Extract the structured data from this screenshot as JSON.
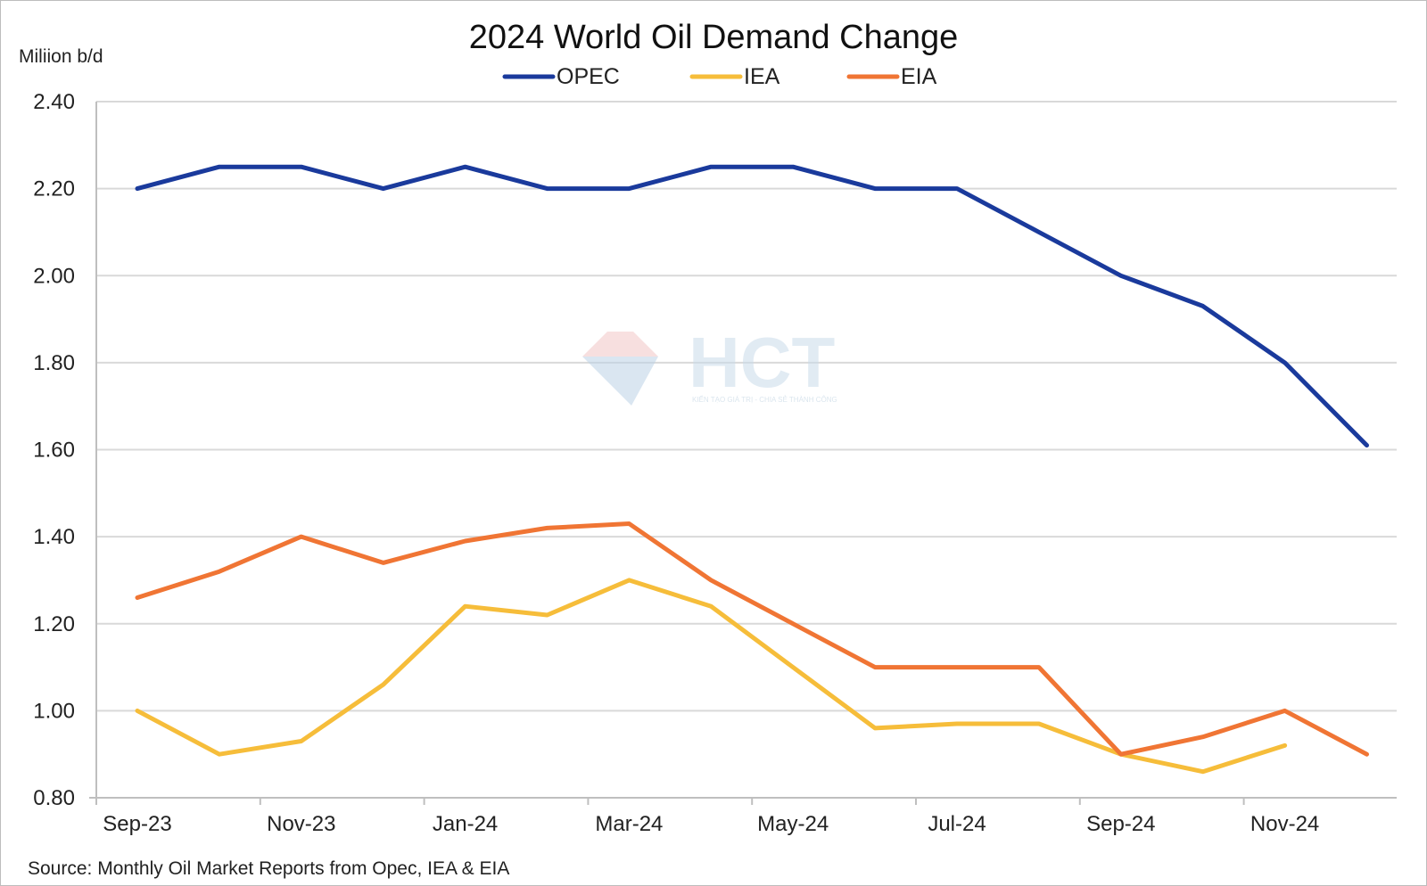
{
  "chart_data": {
    "type": "line",
    "title": "2024 World Oil Demand Change",
    "ylabel": "Miliion b/d",
    "xlabel": "",
    "source": "Source: Monthly Oil Market Reports from Opec, IEA & EIA",
    "ylim": [
      0.8,
      2.4
    ],
    "yticks": [
      "0.80",
      "1.00",
      "1.20",
      "1.40",
      "1.60",
      "1.80",
      "2.00",
      "2.20",
      "2.40"
    ],
    "x": [
      "Sep-23",
      "Oct-23",
      "Nov-23",
      "Dec-23",
      "Jan-24",
      "Feb-24",
      "Mar-24",
      "Apr-24",
      "May-24",
      "Jun-24",
      "Jul-24",
      "Aug-24",
      "Sep-24",
      "Oct-24",
      "Nov-24",
      "Dec-24"
    ],
    "xtick_labels": [
      "Sep-23",
      "Nov-23",
      "Jan-24",
      "Mar-24",
      "May-24",
      "Jul-24",
      "Sep-24",
      "Nov-24"
    ],
    "legend_position": "top-center",
    "grid": true,
    "series": [
      {
        "name": "OPEC",
        "color": "#1a3a9c",
        "values": [
          2.2,
          2.25,
          2.25,
          2.2,
          2.25,
          2.2,
          2.2,
          2.25,
          2.25,
          2.2,
          2.2,
          2.1,
          2.0,
          1.93,
          1.8,
          1.61
        ]
      },
      {
        "name": "IEA",
        "color": "#f6bd3a",
        "values": [
          1.0,
          0.9,
          0.93,
          1.06,
          1.24,
          1.22,
          1.3,
          1.24,
          1.1,
          0.96,
          0.97,
          0.97,
          0.9,
          0.86,
          0.92,
          null
        ]
      },
      {
        "name": "EIA",
        "color": "#f07534",
        "values": [
          1.26,
          1.32,
          1.4,
          1.34,
          1.39,
          1.42,
          1.43,
          1.3,
          1.2,
          1.1,
          1.1,
          1.1,
          0.9,
          0.94,
          1.0,
          0.9
        ]
      }
    ]
  },
  "watermark": {
    "logo_text": "HCT",
    "tagline": "KIẾN TẠO GIÁ TRỊ - CHIA SẺ THÀNH CÔNG"
  }
}
